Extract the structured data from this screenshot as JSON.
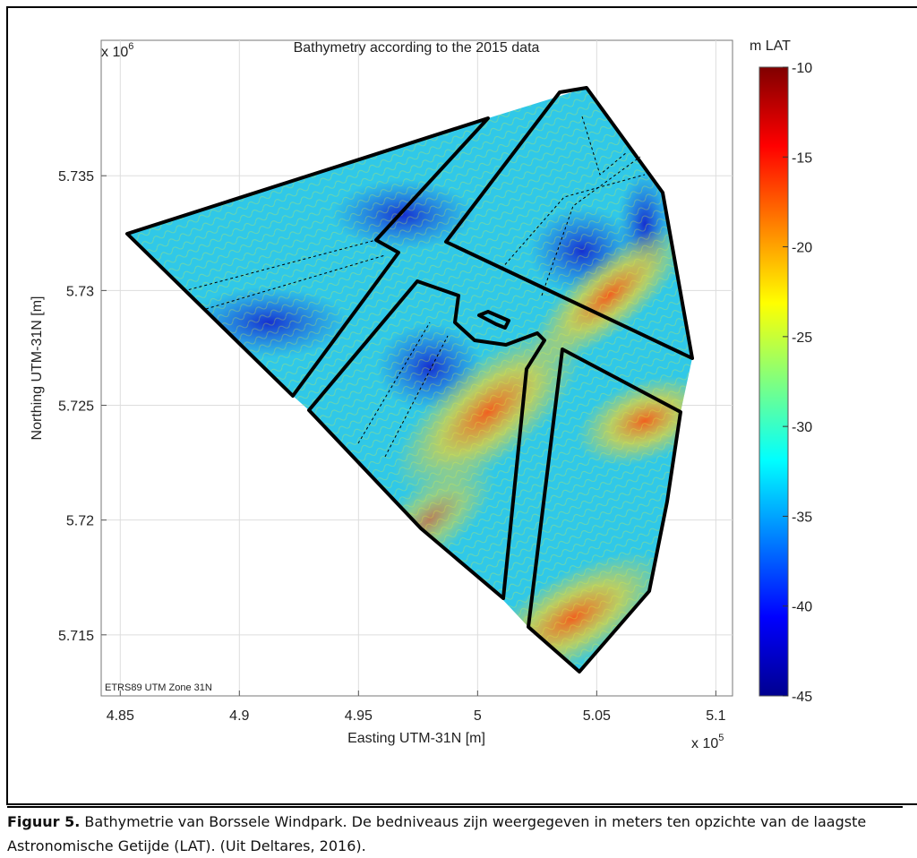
{
  "chart_data": {
    "type": "map",
    "title": "Bathymetry according to the 2015 data",
    "xlabel": "Easting UTM-31N [m]",
    "ylabel": "Northing UTM-31N [m]",
    "x_multiplier": {
      "base": "x 10",
      "exponent": "5"
    },
    "y_multiplier": {
      "base": "x 10",
      "exponent": "6"
    },
    "xlim": [
      4.842,
      5.107
    ],
    "xticks": [
      4.85,
      4.9,
      4.95,
      5,
      5.05,
      5.1
    ],
    "ylim": [
      5.71234,
      5.7409
    ],
    "yticks": [
      5.735,
      5.73,
      5.725,
      5.72,
      5.715
    ],
    "grid": true,
    "annotation": "ETRS89 UTM Zone 31N",
    "colorbar": {
      "label": "m LAT",
      "lim": [
        -45,
        -10
      ],
      "ticks": [
        -10,
        -15,
        -20,
        -25,
        -30,
        -35,
        -40,
        -45
      ],
      "colormap": "jet"
    }
  },
  "caption": {
    "label": "Figuur 5.",
    "text": "Bathymetrie van Borssele Windpark. De bedniveaus zijn weergegeven in meters ten opzichte van de laagste Astronomische Getijde (LAT). (Uit Deltares, 2016)."
  }
}
